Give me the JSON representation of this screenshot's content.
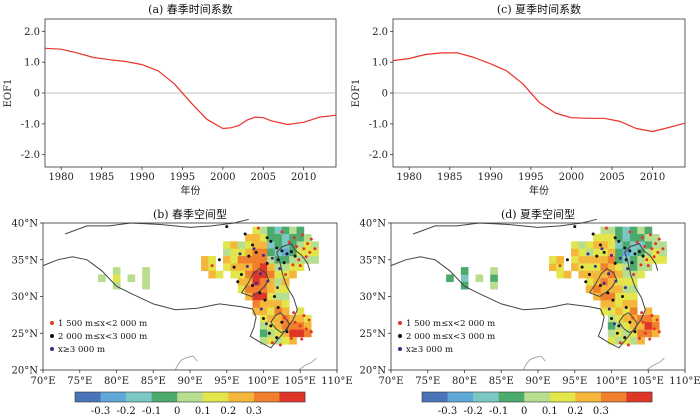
{
  "chart_data": [
    {
      "type": "line",
      "title": "(a) 春季时间系数",
      "xlabel": "年份",
      "ylabel": "EOF1",
      "xlim": [
        1978,
        2014
      ],
      "ylim": [
        -2.4,
        2.4
      ],
      "x_ticks": [
        "1980",
        "1985",
        "1990",
        "1995",
        "2000",
        "2005",
        "2010"
      ],
      "y_ticks": [
        "2.0",
        "1.0",
        "0",
        "-1.0",
        "-2.0"
      ],
      "color": "#e8332a",
      "zero_line": true,
      "x": [
        1978,
        1980,
        1982,
        1984,
        1986,
        1988,
        1990,
        1992,
        1994,
        1996,
        1998,
        2000,
        2001,
        2002,
        2003,
        2004,
        2005,
        2006,
        2008,
        2010,
        2012,
        2014
      ],
      "y": [
        1.45,
        1.42,
        1.3,
        1.15,
        1.08,
        1.02,
        0.92,
        0.72,
        0.3,
        -0.3,
        -0.85,
        -1.15,
        -1.13,
        -1.05,
        -0.88,
        -0.78,
        -0.8,
        -0.9,
        -1.02,
        -0.95,
        -0.78,
        -0.72
      ]
    },
    {
      "type": "line",
      "title": "(c) 夏季时间系数",
      "xlabel": "年份",
      "ylabel": "EOF1",
      "xlim": [
        1978,
        2014
      ],
      "ylim": [
        -2.4,
        2.4
      ],
      "x_ticks": [
        "1980",
        "1985",
        "1990",
        "1995",
        "2000",
        "2005",
        "2010"
      ],
      "y_ticks": [
        "2.0",
        "1.0",
        "0",
        "-1.0",
        "-2.0"
      ],
      "color": "#e8332a",
      "zero_line": true,
      "x": [
        1978,
        1980,
        1982,
        1984,
        1986,
        1988,
        1990,
        1992,
        1994,
        1996,
        1998,
        2000,
        2002,
        2004,
        2006,
        2008,
        2010,
        2012,
        2014
      ],
      "y": [
        1.05,
        1.12,
        1.25,
        1.3,
        1.3,
        1.15,
        0.95,
        0.72,
        0.3,
        -0.3,
        -0.65,
        -0.8,
        -0.82,
        -0.82,
        -0.92,
        -1.15,
        -1.25,
        -1.12,
        -0.98
      ]
    },
    {
      "type": "heatmap",
      "title": "(b) 春季空间型",
      "xlim": [
        70,
        110
      ],
      "ylim": [
        20,
        40
      ],
      "x_ticks": [
        "70°E",
        "75°E",
        "80°E",
        "85°E",
        "90°E",
        "95°E",
        "100°E",
        "105°E",
        "110°E"
      ],
      "y_ticks": [
        "40°N",
        "35°N",
        "30°N",
        "25°N",
        "20°N"
      ],
      "legend": [
        "1 500 m≤x<2 000 m",
        "2 000 m≤x<3 000 m",
        "x≥3 000 m"
      ]
    },
    {
      "type": "heatmap",
      "title": "(d) 夏季空间型",
      "xlim": [
        70,
        110
      ],
      "ylim": [
        20,
        40
      ],
      "x_ticks": [
        "70°E",
        "75°E",
        "80°E",
        "85°E",
        "90°E",
        "95°E",
        "100°E",
        "105°E",
        "110°E"
      ],
      "y_ticks": [
        "40°N",
        "35°N",
        "30°N",
        "25°N",
        "20°N"
      ],
      "legend": [
        "1 500 m≤x<2 000 m",
        "2 000 m≤x<3 000 m",
        "x≥3 000 m"
      ]
    }
  ],
  "colorbar": {
    "ticks": [
      "-0.3",
      "-0.2",
      "-0.1",
      "0",
      "0.1",
      "0.2",
      "0.3"
    ],
    "colors": [
      "#4a74b8",
      "#5fa7d6",
      "#7cc7c4",
      "#4caa6d",
      "#b7dd8e",
      "#e2e64a",
      "#f5b73b",
      "#f07f2e",
      "#e0362a"
    ]
  },
  "legend_colors": [
    "#e8332a",
    "#111111",
    "#3a2a8c"
  ]
}
